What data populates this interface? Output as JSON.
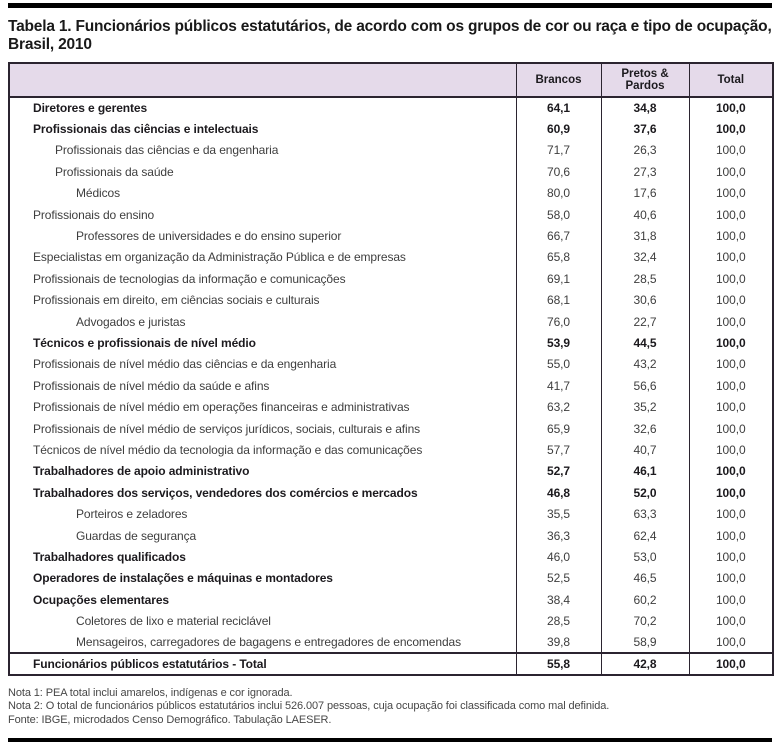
{
  "page": {
    "title": "Tabela 1. Funcionários públicos estatutários, de acordo com os grupos de cor ou raça e tipo de ocupação, Brasil, 2010"
  },
  "table": {
    "columns": [
      "Brancos",
      "Pretos & Pardos",
      "Total"
    ],
    "rows": [
      {
        "label": "Diretores e gerentes",
        "indent": 0,
        "label_bold": true,
        "values_bold": true,
        "total": false,
        "values": [
          "64,1",
          "34,8",
          "100,0"
        ]
      },
      {
        "label": "Profissionais das ciências e intelectuais",
        "indent": 0,
        "label_bold": true,
        "values_bold": true,
        "total": false,
        "values": [
          "60,9",
          "37,6",
          "100,0"
        ]
      },
      {
        "label": "Profissionais das ciências e da engenharia",
        "indent": 1,
        "label_bold": false,
        "values_bold": false,
        "total": false,
        "values": [
          "71,7",
          "26,3",
          "100,0"
        ]
      },
      {
        "label": "Profissionais da saúde",
        "indent": 1,
        "label_bold": false,
        "values_bold": false,
        "total": false,
        "values": [
          "70,6",
          "27,3",
          "100,0"
        ]
      },
      {
        "label": "Médicos",
        "indent": 2,
        "label_bold": false,
        "values_bold": false,
        "total": false,
        "values": [
          "80,0",
          "17,6",
          "100,0"
        ]
      },
      {
        "label": "Profissionais do ensino",
        "indent": 0,
        "label_bold": false,
        "values_bold": false,
        "total": false,
        "values": [
          "58,0",
          "40,6",
          "100,0"
        ]
      },
      {
        "label": "Professores de universidades e do ensino superior",
        "indent": 2,
        "label_bold": false,
        "values_bold": false,
        "total": false,
        "values": [
          "66,7",
          "31,8",
          "100,0"
        ]
      },
      {
        "label": "Especialistas em organização da Administração Pública e de empresas",
        "indent": 0,
        "label_bold": false,
        "values_bold": false,
        "total": false,
        "values": [
          "65,8",
          "32,4",
          "100,0"
        ]
      },
      {
        "label": "Profissionais de tecnologias da informação e comunicações",
        "indent": 0,
        "label_bold": false,
        "values_bold": false,
        "total": false,
        "values": [
          "69,1",
          "28,5",
          "100,0"
        ]
      },
      {
        "label": "Profissionais em direito, em ciências sociais e culturais",
        "indent": 0,
        "label_bold": false,
        "values_bold": false,
        "total": false,
        "values": [
          "68,1",
          "30,6",
          "100,0"
        ]
      },
      {
        "label": "Advogados e juristas",
        "indent": 2,
        "label_bold": false,
        "values_bold": false,
        "total": false,
        "values": [
          "76,0",
          "22,7",
          "100,0"
        ]
      },
      {
        "label": "Técnicos e profissionais de nível médio",
        "indent": 0,
        "label_bold": true,
        "values_bold": true,
        "total": false,
        "values": [
          "53,9",
          "44,5",
          "100,0"
        ]
      },
      {
        "label": "Profissionais de nível médio das ciências e da engenharia",
        "indent": 0,
        "label_bold": false,
        "values_bold": false,
        "total": false,
        "values": [
          "55,0",
          "43,2",
          "100,0"
        ]
      },
      {
        "label": "Profissionais de nível médio da saúde e afins",
        "indent": 0,
        "label_bold": false,
        "values_bold": false,
        "total": false,
        "values": [
          "41,7",
          "56,6",
          "100,0"
        ]
      },
      {
        "label": "Profissionais de nível médio em operações financeiras e administrativas",
        "indent": 0,
        "label_bold": false,
        "values_bold": false,
        "total": false,
        "values": [
          "63,2",
          "35,2",
          "100,0"
        ]
      },
      {
        "label": "Profissionais de nível médio de serviços jurídicos, sociais, culturais e afins",
        "indent": 0,
        "label_bold": false,
        "values_bold": false,
        "total": false,
        "values": [
          "65,9",
          "32,6",
          "100,0"
        ]
      },
      {
        "label": "Técnicos de nível médio da tecnologia da informação e das comunicações",
        "indent": 0,
        "label_bold": false,
        "values_bold": false,
        "total": false,
        "values": [
          "57,7",
          "40,7",
          "100,0"
        ]
      },
      {
        "label": "Trabalhadores de apoio administrativo",
        "indent": 0,
        "label_bold": true,
        "values_bold": true,
        "total": false,
        "values": [
          "52,7",
          "46,1",
          "100,0"
        ]
      },
      {
        "label": "Trabalhadores dos serviços, vendedores dos comércios e mercados",
        "indent": 0,
        "label_bold": true,
        "values_bold": true,
        "total": false,
        "values": [
          "46,8",
          "52,0",
          "100,0"
        ]
      },
      {
        "label": "Porteiros e zeladores",
        "indent": 2,
        "label_bold": false,
        "values_bold": false,
        "total": false,
        "values": [
          "35,5",
          "63,3",
          "100,0"
        ]
      },
      {
        "label": "Guardas de segurança",
        "indent": 2,
        "label_bold": false,
        "values_bold": false,
        "total": false,
        "values": [
          "36,3",
          "62,4",
          "100,0"
        ]
      },
      {
        "label": "Trabalhadores qualificados",
        "indent": 0,
        "label_bold": true,
        "values_bold": false,
        "total": false,
        "values": [
          "46,0",
          "53,0",
          "100,0"
        ]
      },
      {
        "label": "Operadores de instalações e máquinas e montadores",
        "indent": 0,
        "label_bold": true,
        "values_bold": false,
        "total": false,
        "values": [
          "52,5",
          "46,5",
          "100,0"
        ]
      },
      {
        "label": "Ocupações elementares",
        "indent": 0,
        "label_bold": true,
        "values_bold": false,
        "total": false,
        "values": [
          "38,4",
          "60,2",
          "100,0"
        ]
      },
      {
        "label": "Coletores de lixo e material reciclável",
        "indent": 2,
        "label_bold": false,
        "values_bold": false,
        "total": false,
        "values": [
          "28,5",
          "70,2",
          "100,0"
        ]
      },
      {
        "label": "Mensageiros, carregadores de bagagens e entregadores de encomendas",
        "indent": 2,
        "label_bold": false,
        "values_bold": false,
        "total": false,
        "values": [
          "39,8",
          "58,9",
          "100,0"
        ]
      },
      {
        "label": "Funcionários públicos estatutários - Total",
        "indent": 0,
        "label_bold": true,
        "values_bold": true,
        "total": true,
        "values": [
          "55,8",
          "42,8",
          "100,0"
        ]
      }
    ]
  },
  "notes": [
    "Nota 1: PEA total inclui amarelos, indígenas e cor ignorada.",
    "Nota 2: O total de funcionários públicos estatutários inclui 526.007 pessoas, cuja ocupação foi classificada como mal definida.",
    "Fonte: IBGE, microdados Censo Demográfico. Tabulação LAESER."
  ],
  "colors": {
    "header_bg": "#e5daea",
    "border": "#2b2430",
    "rule": "#000000",
    "strong_text": "#1c1a1e",
    "body_text": "#3e3e3e"
  }
}
